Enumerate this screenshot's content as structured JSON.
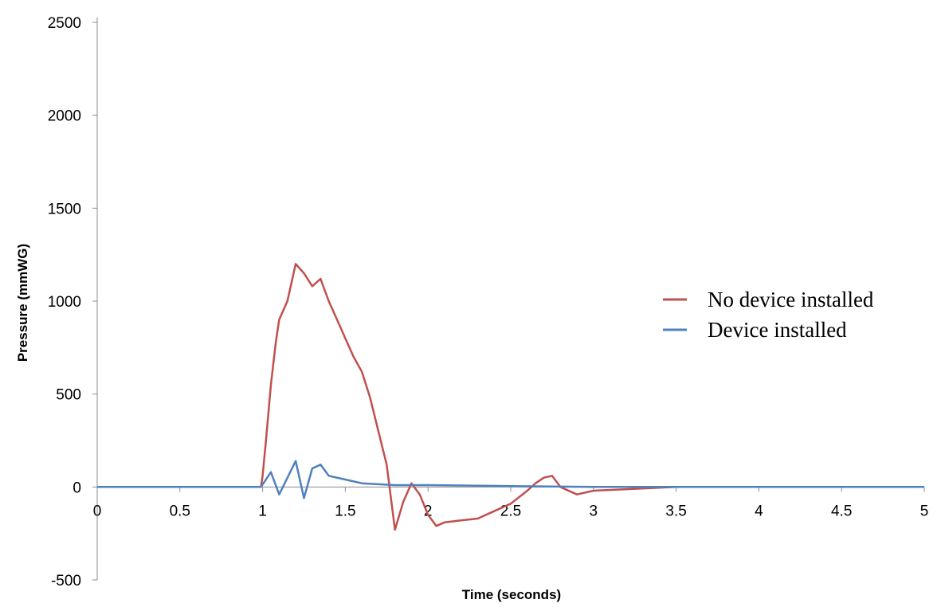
{
  "chart_data": {
    "type": "line",
    "xlabel": "Time (seconds)",
    "ylabel": "Pressure (mmWG)",
    "xlim": [
      0,
      5
    ],
    "ylim": [
      -500,
      2500
    ],
    "x_ticks": [
      "0",
      "0.5",
      "1",
      "1.5",
      "2",
      "2.5",
      "3",
      "3.5",
      "4",
      "4.5",
      "5"
    ],
    "y_ticks": [
      "-500",
      "0",
      "500",
      "1000",
      "1500",
      "2000",
      "2500"
    ],
    "grid": false,
    "legend_position": "right",
    "series": [
      {
        "name": "No device installed",
        "color": "#C0504D",
        "points": [
          [
            0,
            0
          ],
          [
            0.2,
            0
          ],
          [
            0.5,
            0
          ],
          [
            0.8,
            0
          ],
          [
            0.99,
            0
          ],
          [
            1.0,
            60
          ],
          [
            1.02,
            250
          ],
          [
            1.05,
            550
          ],
          [
            1.08,
            780
          ],
          [
            1.1,
            900
          ],
          [
            1.15,
            1000
          ],
          [
            1.2,
            1200
          ],
          [
            1.25,
            1150
          ],
          [
            1.3,
            1080
          ],
          [
            1.35,
            1120
          ],
          [
            1.4,
            1000
          ],
          [
            1.45,
            900
          ],
          [
            1.5,
            800
          ],
          [
            1.55,
            700
          ],
          [
            1.6,
            620
          ],
          [
            1.65,
            480
          ],
          [
            1.7,
            300
          ],
          [
            1.75,
            120
          ],
          [
            1.8,
            -230
          ],
          [
            1.85,
            -80
          ],
          [
            1.9,
            20
          ],
          [
            1.95,
            -40
          ],
          [
            2.0,
            -150
          ],
          [
            2.05,
            -210
          ],
          [
            2.1,
            -190
          ],
          [
            2.2,
            -180
          ],
          [
            2.3,
            -170
          ],
          [
            2.4,
            -130
          ],
          [
            2.5,
            -90
          ],
          [
            2.6,
            -20
          ],
          [
            2.65,
            20
          ],
          [
            2.7,
            50
          ],
          [
            2.75,
            60
          ],
          [
            2.8,
            0
          ],
          [
            2.9,
            -40
          ],
          [
            3.0,
            -20
          ],
          [
            3.5,
            0
          ],
          [
            4.0,
            0
          ],
          [
            4.5,
            0
          ],
          [
            5.0,
            0
          ]
        ]
      },
      {
        "name": "Device installed",
        "color": "#4F81BD",
        "points": [
          [
            0,
            0
          ],
          [
            0.5,
            0
          ],
          [
            0.99,
            0
          ],
          [
            1.05,
            80
          ],
          [
            1.1,
            -40
          ],
          [
            1.2,
            140
          ],
          [
            1.25,
            -60
          ],
          [
            1.3,
            100
          ],
          [
            1.35,
            120
          ],
          [
            1.4,
            60
          ],
          [
            1.5,
            40
          ],
          [
            1.6,
            20
          ],
          [
            1.8,
            10
          ],
          [
            2.0,
            10
          ],
          [
            2.5,
            5
          ],
          [
            3.0,
            0
          ],
          [
            3.5,
            0
          ],
          [
            4.0,
            0
          ],
          [
            4.5,
            0
          ],
          [
            5.0,
            0
          ]
        ]
      }
    ]
  }
}
